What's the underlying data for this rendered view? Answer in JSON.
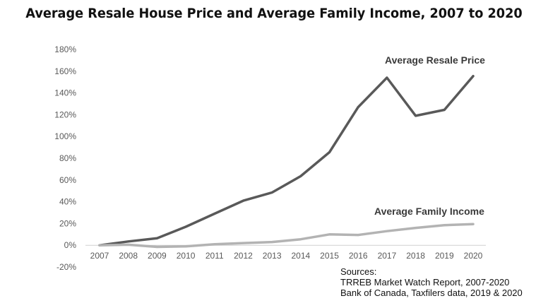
{
  "chart_data": {
    "type": "line",
    "title": "Average Resale House Price and Average Family Income, 2007 to 2020",
    "x": [
      "2007",
      "2008",
      "2009",
      "2010",
      "2011",
      "2012",
      "2013",
      "2014",
      "2015",
      "2016",
      "2017",
      "2018",
      "2019",
      "2020"
    ],
    "yticks": [
      "-20%",
      "0%",
      "20%",
      "40%",
      "60%",
      "80%",
      "100%",
      "120%",
      "140%",
      "160%",
      "180%"
    ],
    "ylim": [
      -20,
      180
    ],
    "grid": false,
    "series": [
      {
        "name": "Average Resale Price",
        "color": "#595959",
        "values": [
          0,
          3.5,
          6.5,
          17,
          29,
          41,
          48.5,
          63.5,
          85.5,
          127,
          154,
          119,
          124.5,
          155.5
        ]
      },
      {
        "name": "Average Family Income",
        "color": "#b3b3b3",
        "values": [
          0,
          0.5,
          -1.5,
          -1,
          1,
          2,
          3,
          5.5,
          10,
          9.5,
          13,
          16,
          18.5,
          19.5
        ]
      }
    ]
  },
  "sources": {
    "heading": "Sources:",
    "lines": [
      "TRREB Market Watch Report, 2007-2020",
      "Bank of Canada, Taxfilers data, 2019 & 2020"
    ]
  }
}
